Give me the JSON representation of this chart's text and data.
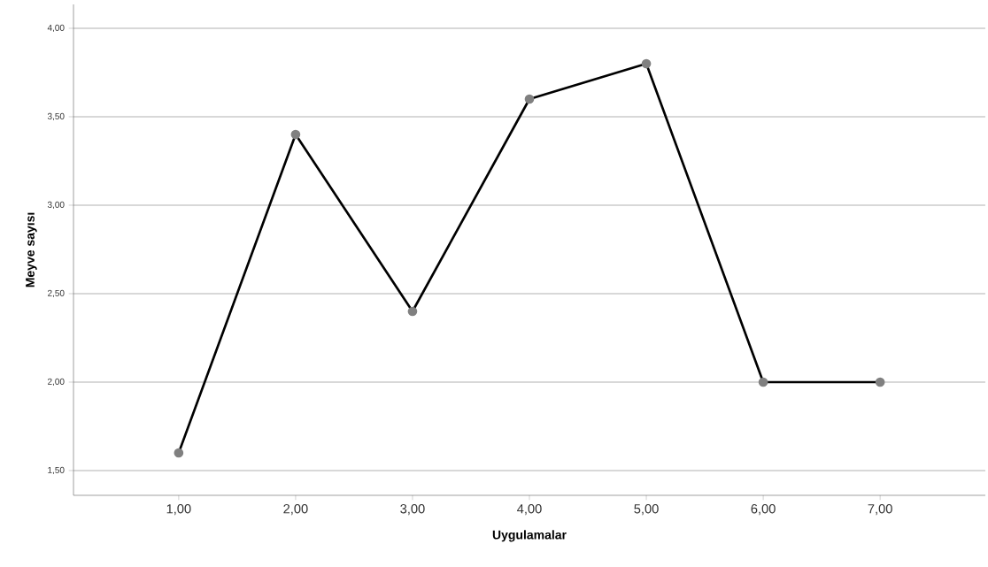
{
  "chart_data": {
    "type": "line",
    "xlabel": "Uygulamalar",
    "ylabel": "Meyve sayısı",
    "x": [
      1,
      2,
      3,
      4,
      5,
      6,
      7
    ],
    "series": [
      {
        "color": "#000000",
        "values": [
          1.6,
          3.4,
          2.4,
          3.6,
          3.8,
          2.0,
          2.0
        ]
      }
    ],
    "xlim": [
      0.1,
      7.9
    ],
    "ylim": [
      1.36,
      4.135
    ],
    "xticks": [
      {
        "value": 1,
        "label": "1,00"
      },
      {
        "value": 2,
        "label": "2,00"
      },
      {
        "value": 3,
        "label": "3,00"
      },
      {
        "value": 4,
        "label": "4,00"
      },
      {
        "value": 5,
        "label": "5,00"
      },
      {
        "value": 6,
        "label": "6,00"
      },
      {
        "value": 7,
        "label": "7,00"
      }
    ],
    "yticks": [
      {
        "value": 1.5,
        "label": "1,50"
      },
      {
        "value": 2,
        "label": "2,00"
      },
      {
        "value": 2.5,
        "label": "2,50"
      },
      {
        "value": 3,
        "label": "3,00"
      },
      {
        "value": 3.5,
        "label": "3,50"
      },
      {
        "value": 4,
        "label": "4,00"
      }
    ],
    "grid": "y",
    "marker": "circle",
    "line_style": "solid"
  }
}
